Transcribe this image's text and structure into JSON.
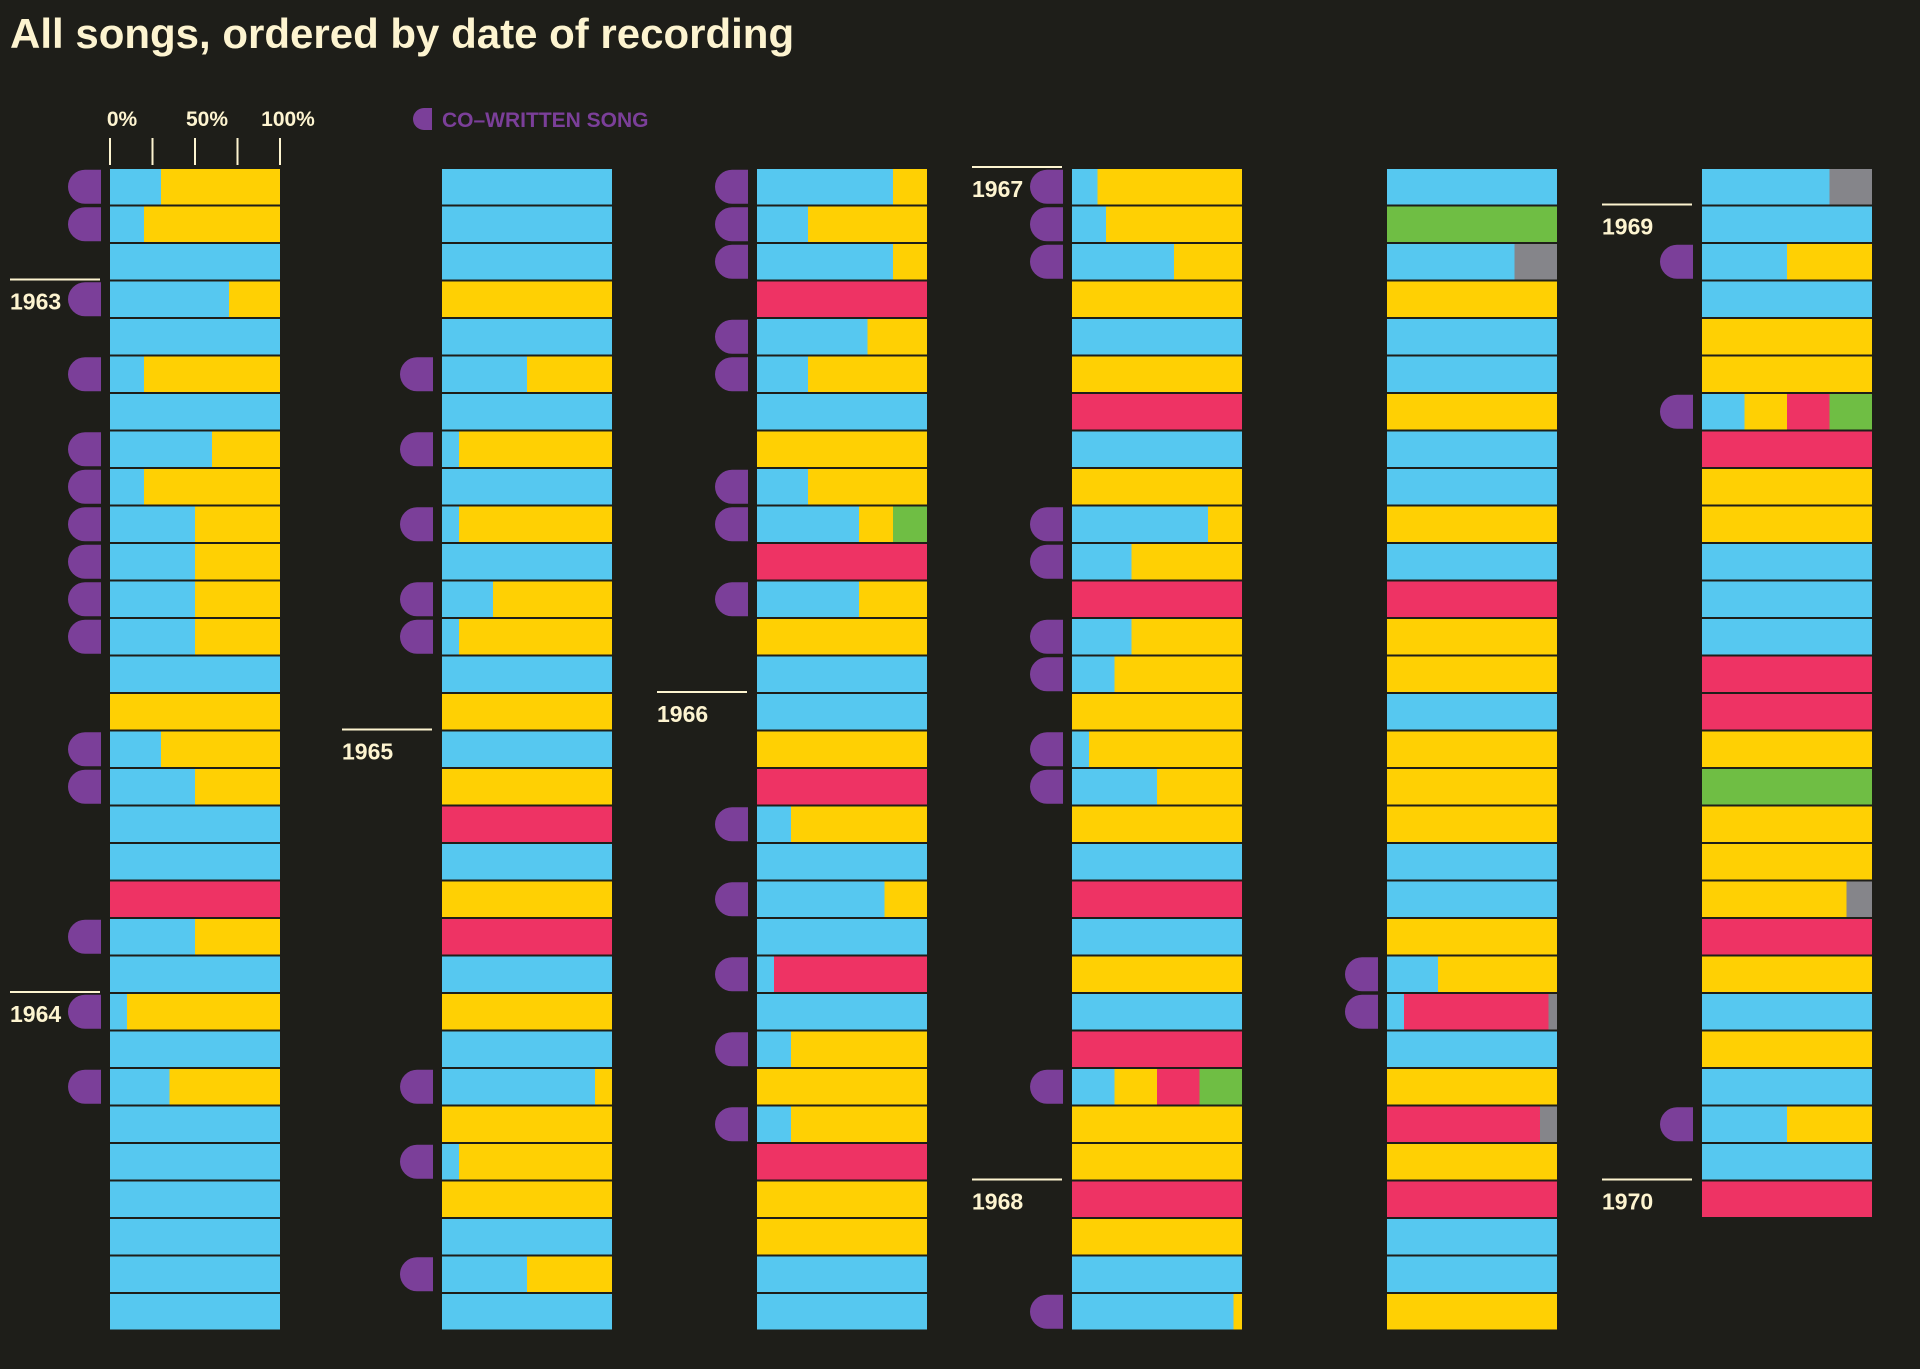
{
  "title": "All songs, ordered by date of recording",
  "chart_data": {
    "type": "bar",
    "orientation": "horizontal-stacked-100",
    "scale_ticks": [
      "0%",
      "50%",
      "100%"
    ],
    "legend": {
      "label": "CO–WRITTEN SONG"
    },
    "colors": {
      "background": "#1e1e19",
      "blue": "#56c8f0",
      "yellow": "#ffd003",
      "pink": "#ee3364",
      "green": "#6fbe44",
      "gray": "#85858a",
      "cowrite": "#7b3f99",
      "text": "#fdf4d0"
    },
    "columns": [
      {
        "year_markers": [
          {
            "row": 3,
            "label": "1963"
          },
          {
            "row": 22,
            "label": "1964"
          }
        ],
        "songs": [
          {
            "b": 30,
            "y": 70,
            "cw": true
          },
          {
            "b": 20,
            "y": 80,
            "cw": true
          },
          {
            "b": 100
          },
          {
            "b": 70,
            "y": 30,
            "cw": true
          },
          {
            "b": 100
          },
          {
            "b": 20,
            "y": 80,
            "cw": true
          },
          {
            "b": 100
          },
          {
            "b": 60,
            "y": 40,
            "cw": true
          },
          {
            "b": 20,
            "y": 80,
            "cw": true
          },
          {
            "b": 50,
            "y": 50,
            "cw": true
          },
          {
            "b": 50,
            "y": 50,
            "cw": true
          },
          {
            "b": 50,
            "y": 50,
            "cw": true
          },
          {
            "b": 50,
            "y": 50,
            "cw": true
          },
          {
            "b": 100
          },
          {
            "y": 100
          },
          {
            "b": 30,
            "y": 70,
            "cw": true
          },
          {
            "b": 50,
            "y": 50,
            "cw": true
          },
          {
            "b": 100
          },
          {
            "b": 100
          },
          {
            "p": 100
          },
          {
            "b": 50,
            "y": 50,
            "cw": true
          },
          {
            "b": 100
          },
          {
            "b": 10,
            "y": 90,
            "cw": true
          },
          {
            "b": 100
          },
          {
            "b": 35,
            "y": 65,
            "cw": true
          },
          {
            "b": 100
          },
          {
            "b": 100
          },
          {
            "b": 100
          },
          {
            "b": 100
          },
          {
            "b": 100
          },
          {
            "b": 100
          }
        ]
      },
      {
        "year_markers": [
          {
            "row": 15,
            "label": "1965"
          }
        ],
        "songs": [
          {
            "b": 100
          },
          {
            "b": 100
          },
          {
            "b": 100
          },
          {
            "y": 100
          },
          {
            "b": 100
          },
          {
            "b": 50,
            "y": 50,
            "cw": true
          },
          {
            "b": 100
          },
          {
            "b": 10,
            "y": 90,
            "cw": true
          },
          {
            "b": 100
          },
          {
            "b": 10,
            "y": 90,
            "cw": true
          },
          {
            "b": 100
          },
          {
            "b": 30,
            "y": 70,
            "cw": true
          },
          {
            "b": 10,
            "y": 90,
            "cw": true
          },
          {
            "b": 100
          },
          {
            "y": 100
          },
          {
            "b": 100
          },
          {
            "y": 100
          },
          {
            "p": 100
          },
          {
            "b": 100
          },
          {
            "y": 100
          },
          {
            "p": 100
          },
          {
            "b": 100
          },
          {
            "y": 100
          },
          {
            "b": 100
          },
          {
            "b": 90,
            "y": 10,
            "cw": true
          },
          {
            "y": 100
          },
          {
            "b": 10,
            "y": 90,
            "cw": true
          },
          {
            "y": 100
          },
          {
            "b": 100
          },
          {
            "b": 50,
            "y": 50,
            "cw": true
          },
          {
            "b": 100
          }
        ]
      },
      {
        "year_markers": [
          {
            "row": 14,
            "label": "1966"
          }
        ],
        "songs": [
          {
            "b": 80,
            "y": 20,
            "cw": true
          },
          {
            "b": 30,
            "y": 70,
            "cw": true
          },
          {
            "b": 80,
            "y": 20,
            "cw": true
          },
          {
            "p": 100
          },
          {
            "b": 65,
            "y": 35,
            "cw": true
          },
          {
            "b": 30,
            "y": 70,
            "cw": true
          },
          {
            "b": 100
          },
          {
            "y": 100
          },
          {
            "b": 30,
            "y": 70,
            "cw": true
          },
          {
            "b": 60,
            "y": 20,
            "g": 20,
            "cw": true
          },
          {
            "p": 100
          },
          {
            "b": 60,
            "y": 40,
            "cw": true
          },
          {
            "y": 100
          },
          {
            "b": 100
          },
          {
            "b": 100
          },
          {
            "y": 100
          },
          {
            "p": 100
          },
          {
            "b": 20,
            "y": 80,
            "cw": true
          },
          {
            "b": 100
          },
          {
            "b": 75,
            "y": 25,
            "cw": true
          },
          {
            "b": 100
          },
          {
            "b": 10,
            "p": 90,
            "cw": true
          },
          {
            "b": 100
          },
          {
            "b": 20,
            "y": 80,
            "cw": true
          },
          {
            "y": 100
          },
          {
            "b": 20,
            "y": 80,
            "cw": true
          },
          {
            "p": 100
          },
          {
            "y": 100
          },
          {
            "y": 100
          },
          {
            "b": 100
          },
          {
            "b": 100
          }
        ]
      },
      {
        "year_markers": [
          {
            "row": 0,
            "label": "1967"
          },
          {
            "row": 27,
            "label": "1968"
          }
        ],
        "songs": [
          {
            "b": 15,
            "y": 85,
            "cw": true
          },
          {
            "b": 20,
            "y": 80,
            "cw": true
          },
          {
            "b": 60,
            "y": 40,
            "cw": true
          },
          {
            "y": 100
          },
          {
            "b": 100
          },
          {
            "y": 100
          },
          {
            "p": 100
          },
          {
            "b": 100
          },
          {
            "y": 100
          },
          {
            "b": 80,
            "y": 20,
            "cw": true
          },
          {
            "b": 35,
            "y": 65,
            "cw": true
          },
          {
            "p": 100
          },
          {
            "b": 35,
            "y": 65,
            "cw": true
          },
          {
            "b": 25,
            "y": 75,
            "cw": true
          },
          {
            "y": 100
          },
          {
            "b": 10,
            "y": 90,
            "cw": true
          },
          {
            "b": 50,
            "y": 50,
            "cw": true
          },
          {
            "y": 100
          },
          {
            "b": 100
          },
          {
            "p": 100
          },
          {
            "b": 100
          },
          {
            "y": 100
          },
          {
            "b": 100
          },
          {
            "p": 100
          },
          {
            "b": 25,
            "y": 25,
            "p": 25,
            "g": 25,
            "cw": true
          },
          {
            "y": 100
          },
          {
            "y": 100
          },
          {
            "p": 100
          },
          {
            "y": 100
          },
          {
            "b": 100
          },
          {
            "b": 95,
            "y": 5,
            "cw": true
          }
        ]
      },
      {
        "year_markers": [],
        "songs": [
          {
            "b": 100
          },
          {
            "g": 100
          },
          {
            "b": 75,
            "gr": 25
          },
          {
            "y": 100
          },
          {
            "b": 100
          },
          {
            "b": 100
          },
          {
            "y": 100
          },
          {
            "b": 100
          },
          {
            "b": 100
          },
          {
            "y": 100
          },
          {
            "b": 100
          },
          {
            "p": 100
          },
          {
            "y": 100
          },
          {
            "y": 100
          },
          {
            "b": 100
          },
          {
            "y": 100
          },
          {
            "y": 100
          },
          {
            "y": 100
          },
          {
            "b": 100
          },
          {
            "b": 100
          },
          {
            "y": 100
          },
          {
            "b": 30,
            "y": 70,
            "cw": true
          },
          {
            "b": 10,
            "p": 85,
            "gr": 5,
            "cw": true
          },
          {
            "b": 100
          },
          {
            "y": 100
          },
          {
            "p": 90,
            "gr": 10
          },
          {
            "y": 100
          },
          {
            "p": 100
          },
          {
            "b": 100
          },
          {
            "b": 100
          },
          {
            "y": 100
          }
        ]
      },
      {
        "year_markers": [
          {
            "row": 1,
            "label": "1969"
          },
          {
            "row": 27,
            "label": "1970"
          }
        ],
        "songs": [
          {
            "b": 75,
            "gr": 25
          },
          {
            "b": 100
          },
          {
            "b": 50,
            "y": 50,
            "cw": true
          },
          {
            "b": 100
          },
          {
            "y": 100
          },
          {
            "y": 100
          },
          {
            "b": 25,
            "y": 25,
            "p": 25,
            "g": 25,
            "cw": true
          },
          {
            "p": 100
          },
          {
            "y": 100
          },
          {
            "y": 100
          },
          {
            "b": 100
          },
          {
            "b": 100
          },
          {
            "b": 100
          },
          {
            "p": 100
          },
          {
            "p": 100
          },
          {
            "y": 100
          },
          {
            "g": 100
          },
          {
            "y": 100
          },
          {
            "y": 100
          },
          {
            "y": 85,
            "gr": 15
          },
          {
            "p": 100
          },
          {
            "y": 100
          },
          {
            "b": 100
          },
          {
            "y": 100
          },
          {
            "b": 100
          },
          {
            "b": 50,
            "y": 50,
            "cw": true
          },
          {
            "b": 100
          },
          {
            "p": 100
          }
        ]
      }
    ]
  }
}
